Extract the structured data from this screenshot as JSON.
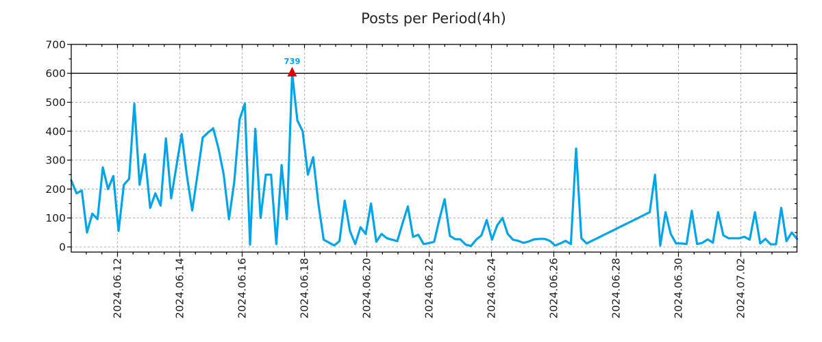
{
  "title": "Posts per Period(4h)",
  "chart_data": {
    "type": "line",
    "title": "Posts per Period(4h)",
    "period": "4h",
    "x_axis": {
      "tick_labels": [
        "2024.06.12",
        "2024.06.14",
        "2024.06.16",
        "2024.06.18",
        "2024.06.20",
        "2024.06.22",
        "2024.06.24",
        "2024.06.26",
        "2024.06.28",
        "2024.06.30",
        "2024.07.02"
      ],
      "minor_ticks_per_interval": 4
    },
    "y_axis": {
      "ticks": [
        0,
        100,
        200,
        300,
        400,
        500,
        600,
        700
      ],
      "minor_step": 50,
      "range": [
        0,
        700
      ]
    },
    "grid": {
      "show": true,
      "style": "dashed",
      "color": "#b0b0b0"
    },
    "cap_line": {
      "value": 600,
      "color": "#000000"
    },
    "series": [
      {
        "name": "posts",
        "color": "#00A5E8",
        "values": [
          230,
          185,
          195,
          50,
          115,
          96,
          275,
          200,
          245,
          55,
          215,
          235,
          495,
          215,
          320,
          135,
          185,
          143,
          375,
          168,
          280,
          390,
          245,
          126,
          250,
          378,
          395,
          410,
          340,
          250,
          96,
          225,
          440,
          495,
          8,
          408,
          100,
          250,
          250,
          10,
          283,
          96,
          739,
          437,
          400,
          250,
          310,
          150,
          25,
          15,
          5,
          20,
          160,
          55,
          10,
          68,
          45,
          150,
          18,
          45,
          30,
          25,
          20,
          82,
          140,
          35,
          42,
          10,
          13,
          18,
          95,
          165,
          38,
          27,
          26,
          8,
          3,
          25,
          40,
          93,
          25,
          75,
          100,
          45,
          25,
          21,
          14,
          19,
          26,
          28,
          28,
          21,
          5,
          12,
          21,
          10,
          340,
          30,
          12,
          21,
          30,
          39,
          48,
          57,
          66,
          75,
          84,
          93,
          102,
          111,
          120,
          250,
          5,
          120,
          45,
          12,
          12,
          10,
          125,
          10,
          14,
          26,
          15,
          120,
          40,
          30,
          30,
          30,
          35,
          25,
          120,
          12,
          28,
          9,
          9,
          135,
          20,
          50,
          28
        ]
      }
    ],
    "peak_annotation": {
      "label": "739",
      "value": 739,
      "point_index": 42,
      "text_color": "#00A5E8",
      "marker": "triangle-up",
      "marker_color": "#DE0000"
    }
  }
}
